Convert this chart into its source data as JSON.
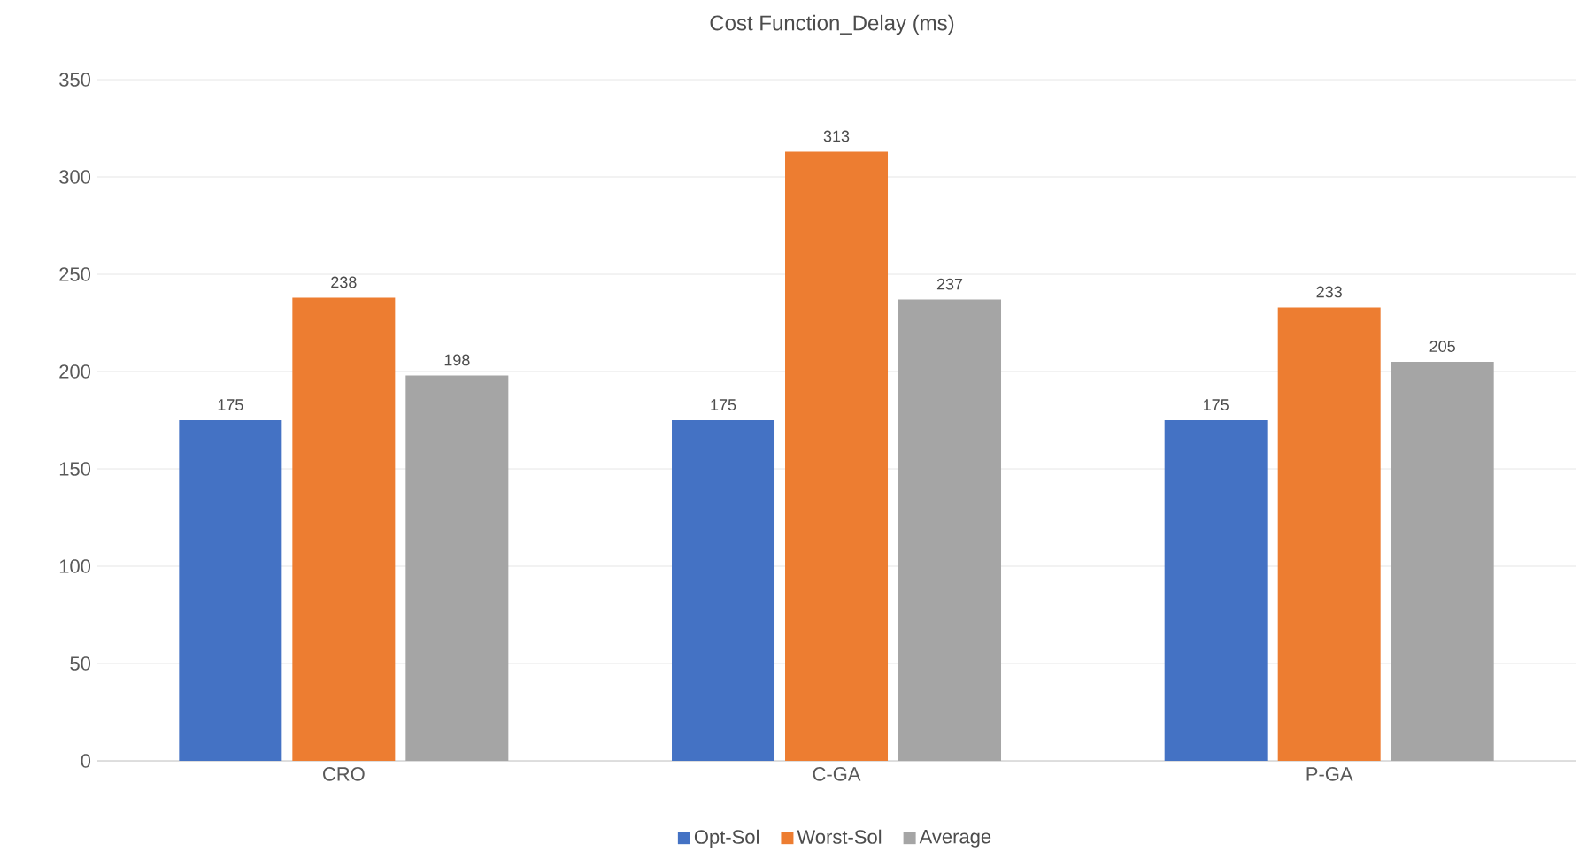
{
  "chart_data": {
    "type": "bar",
    "title": "Cost Function_Delay (ms)",
    "categories": [
      "CRO",
      "C-GA",
      "P-GA"
    ],
    "series": [
      {
        "name": "Opt-Sol",
        "color": "#4472c4",
        "values": [
          175,
          175,
          175
        ]
      },
      {
        "name": "Worst-Sol",
        "color": "#ed7d31",
        "values": [
          238,
          313,
          233
        ]
      },
      {
        "name": "Average",
        "color": "#a5a5a5",
        "values": [
          198,
          237,
          205
        ]
      }
    ],
    "ylim": [
      0,
      350
    ],
    "yticks": [
      0,
      50,
      100,
      150,
      200,
      250,
      300,
      350
    ],
    "grid": "y",
    "legend": "bottom",
    "data_labels": true
  }
}
